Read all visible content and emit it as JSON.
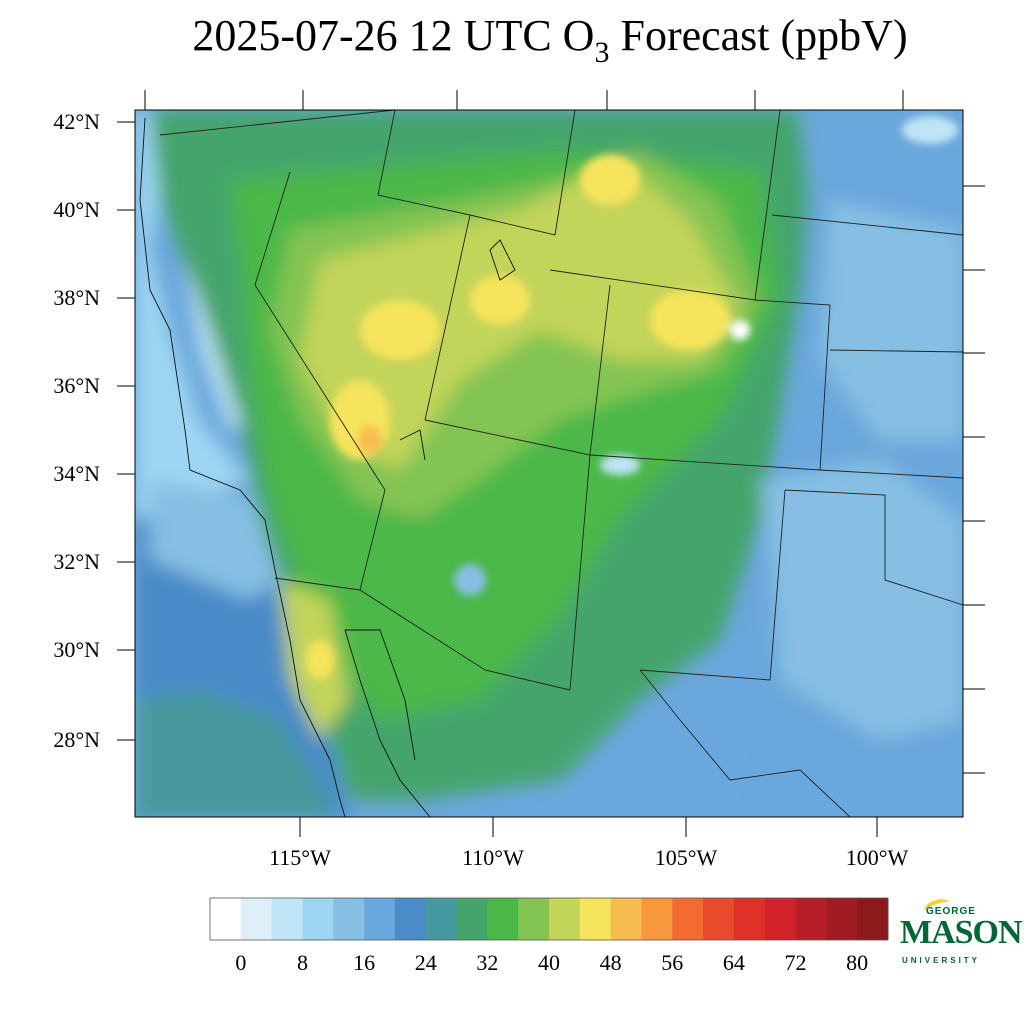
{
  "title": {
    "main": "2025-07-26 12 UTC O",
    "sub": "3",
    "tail": " Forecast (ppbV)"
  },
  "lat_labels": [
    "42°N",
    "40°N",
    "38°N",
    "36°N",
    "34°N",
    "32°N",
    "30°N",
    "28°N"
  ],
  "lon_labels": [
    "115°W",
    "110°W",
    "105°W",
    "100°W"
  ],
  "colorbar": {
    "labels": [
      "0",
      "8",
      "16",
      "24",
      "32",
      "40",
      "48",
      "56",
      "64",
      "72",
      "80"
    ],
    "colors": [
      "#ffffff",
      "#deeffa",
      "#bfe4f6",
      "#9dd5f2",
      "#86bfe3",
      "#6aa7dc",
      "#4a8bc8",
      "#46999e",
      "#45a46c",
      "#4bb84a",
      "#84c452",
      "#c3d45a",
      "#f6e45c",
      "#f7bc50",
      "#f7983e",
      "#f26b32",
      "#e84a2c",
      "#de3228",
      "#d2232a",
      "#b81e28",
      "#a01b24",
      "#8a1a1c"
    ]
  },
  "logo": {
    "line1": "GEORGE",
    "line2": "MASON",
    "line3": "UNIVERSITY"
  },
  "palette": {
    "ocean_deep": "#4a8bc8",
    "ocean_teal": "#46999e",
    "ocean_light": "#86bfe3",
    "land_mid": "#45a46c",
    "land_green": "#4bb84a",
    "land_yellow": "#c3d45a",
    "hot_yellow": "#f6e45c",
    "hot_orange": "#f7bc50",
    "plains_blue": "#6aa7dc",
    "plains_light": "#9dd5f2"
  }
}
